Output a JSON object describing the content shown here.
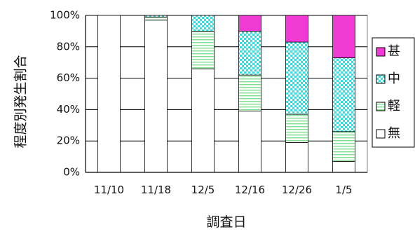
{
  "chart_data": {
    "type": "bar",
    "stacked": true,
    "percent": true,
    "title": "",
    "xlabel": "調査日",
    "ylabel": "程度別発生割合",
    "ylim": [
      0,
      100
    ],
    "yticks": [
      "0%",
      "20%",
      "40%",
      "60%",
      "80%",
      "100%"
    ],
    "categories": [
      "11/10",
      "11/18",
      "12/5",
      "12/16",
      "12/26",
      "1/5"
    ],
    "series": [
      {
        "name": "無",
        "pattern": "plain",
        "color": "#ffffff",
        "values": [
          100,
          97,
          66,
          39,
          19,
          7
        ]
      },
      {
        "name": "軽",
        "pattern": "lines",
        "color": "#7ee08e",
        "values": [
          0,
          2,
          24,
          23,
          18,
          19
        ]
      },
      {
        "name": "中",
        "pattern": "checker",
        "color": "#33dde0",
        "values": [
          0,
          1,
          10,
          28,
          46,
          47
        ]
      },
      {
        "name": "甚",
        "pattern": "solid",
        "color": "#f03ad3",
        "values": [
          0,
          0,
          0,
          10,
          17,
          27
        ]
      }
    ],
    "legend": {
      "position": "right",
      "order": [
        "甚",
        "中",
        "軽",
        "無"
      ]
    },
    "grid": true
  }
}
